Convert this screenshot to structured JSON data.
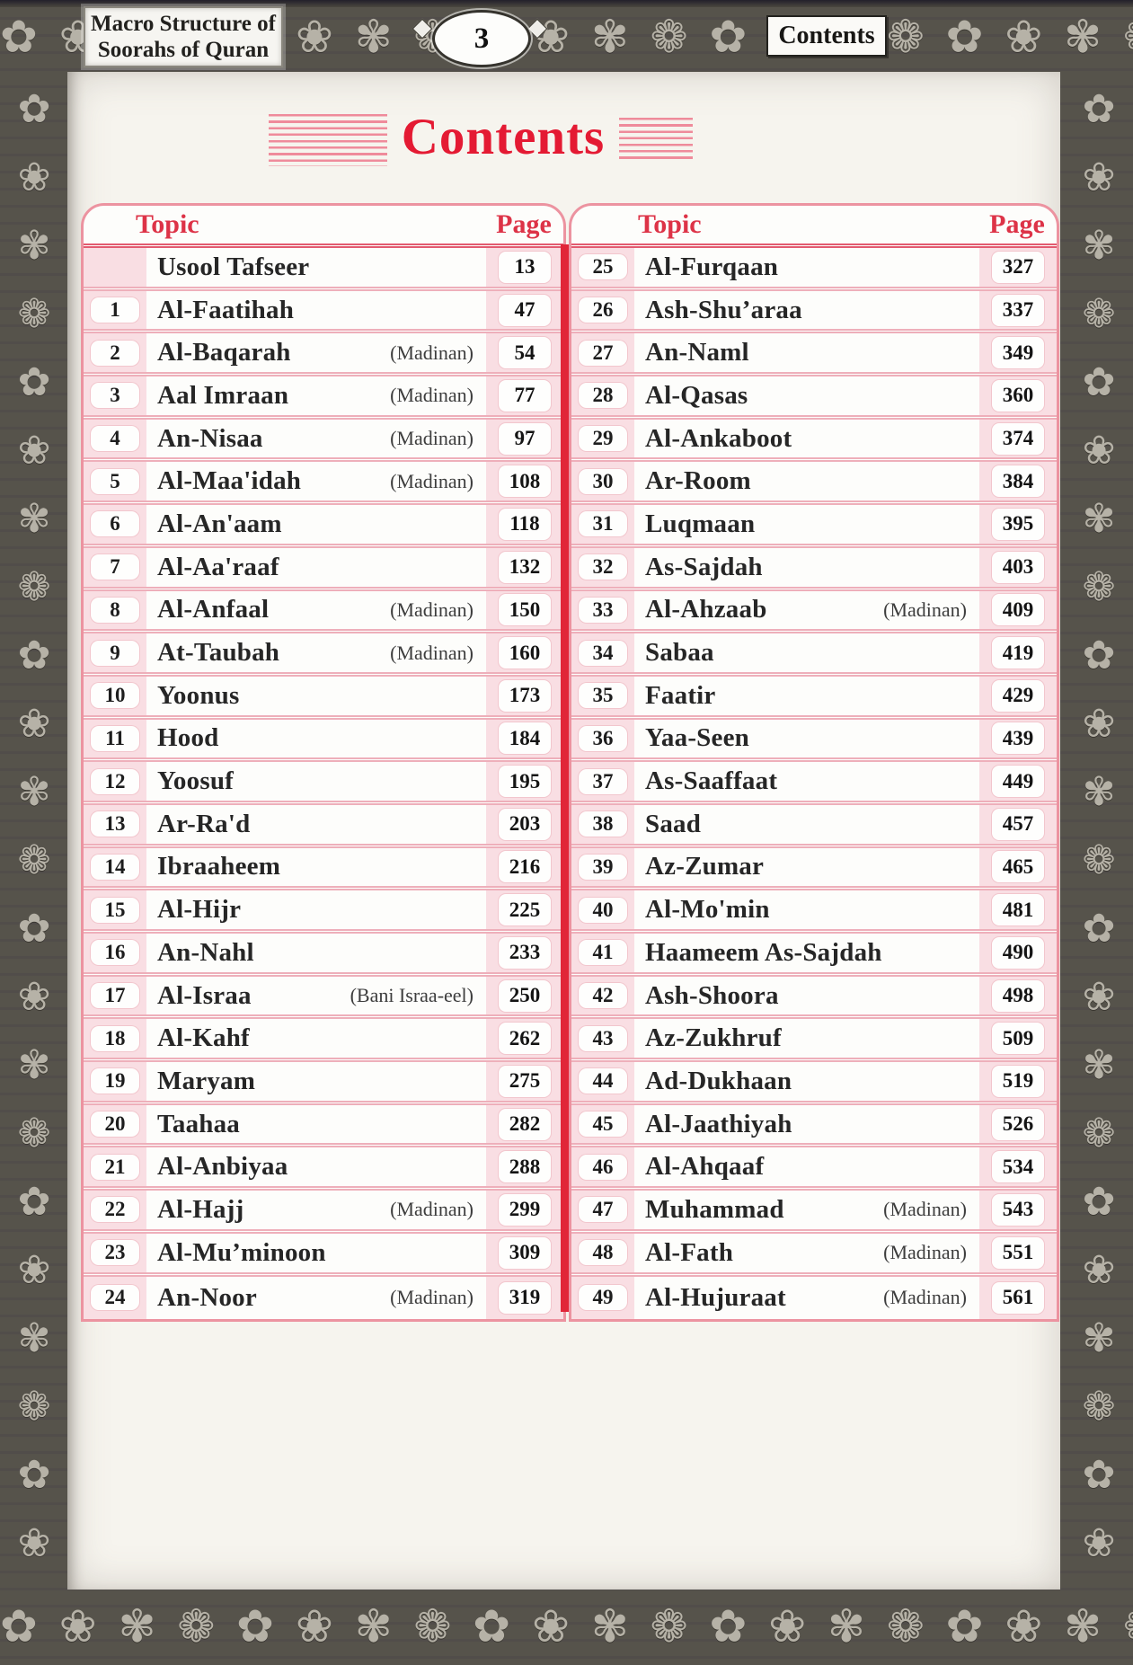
{
  "header": {
    "book_title_line1": "Macro Structure of",
    "book_title_line2": "Soorahs of Quran",
    "page_number": "3",
    "corner_label": "Contents"
  },
  "title": "Contents",
  "tables": {
    "left": {
      "topic_label": "Topic",
      "page_label": "Page",
      "rows": [
        {
          "num": "",
          "name": "Usool Tafseer",
          "note": "",
          "page": "13"
        },
        {
          "num": "1",
          "name": "Al-Faatihah",
          "note": "",
          "page": "47"
        },
        {
          "num": "2",
          "name": "Al-Baqarah",
          "note": "(Madinan)",
          "page": "54"
        },
        {
          "num": "3",
          "name": "Aal Imraan",
          "note": "(Madinan)",
          "page": "77"
        },
        {
          "num": "4",
          "name": "An-Nisaa",
          "note": "(Madinan)",
          "page": "97"
        },
        {
          "num": "5",
          "name": "Al-Maa'idah",
          "note": "(Madinan)",
          "page": "108"
        },
        {
          "num": "6",
          "name": "Al-An'aam",
          "note": "",
          "page": "118"
        },
        {
          "num": "7",
          "name": "Al-Aa'raaf",
          "note": "",
          "page": "132"
        },
        {
          "num": "8",
          "name": "Al-Anfaal",
          "note": "(Madinan)",
          "page": "150"
        },
        {
          "num": "9",
          "name": "At-Taubah",
          "note": "(Madinan)",
          "page": "160"
        },
        {
          "num": "10",
          "name": "Yoonus",
          "note": "",
          "page": "173"
        },
        {
          "num": "11",
          "name": "Hood",
          "note": "",
          "page": "184"
        },
        {
          "num": "12",
          "name": "Yoosuf",
          "note": "",
          "page": "195"
        },
        {
          "num": "13",
          "name": "Ar-Ra'd",
          "note": "",
          "page": "203"
        },
        {
          "num": "14",
          "name": "Ibraaheem",
          "note": "",
          "page": "216"
        },
        {
          "num": "15",
          "name": "Al-Hijr",
          "note": "",
          "page": "225"
        },
        {
          "num": "16",
          "name": "An-Nahl",
          "note": "",
          "page": "233"
        },
        {
          "num": "17",
          "name": "Al-Israa",
          "note": "(Bani Israa-eel)",
          "page": "250"
        },
        {
          "num": "18",
          "name": "Al-Kahf",
          "note": "",
          "page": "262"
        },
        {
          "num": "19",
          "name": "Maryam",
          "note": "",
          "page": "275"
        },
        {
          "num": "20",
          "name": "Taahaa",
          "note": "",
          "page": "282"
        },
        {
          "num": "21",
          "name": "Al-Anbiyaa",
          "note": "",
          "page": "288"
        },
        {
          "num": "22",
          "name": "Al-Hajj",
          "note": "(Madinan)",
          "page": "299"
        },
        {
          "num": "23",
          "name": "Al-Mu’minoon",
          "note": "",
          "page": "309"
        },
        {
          "num": "24",
          "name": "An-Noor",
          "note": "(Madinan)",
          "page": "319"
        }
      ]
    },
    "right": {
      "topic_label": "Topic",
      "page_label": "Page",
      "rows": [
        {
          "num": "25",
          "name": "Al-Furqaan",
          "note": "",
          "page": "327"
        },
        {
          "num": "26",
          "name": "Ash-Shu’araa",
          "note": "",
          "page": "337"
        },
        {
          "num": "27",
          "name": "An-Naml",
          "note": "",
          "page": "349"
        },
        {
          "num": "28",
          "name": "Al-Qasas",
          "note": "",
          "page": "360"
        },
        {
          "num": "29",
          "name": "Al-Ankaboot",
          "note": "",
          "page": "374"
        },
        {
          "num": "30",
          "name": "Ar-Room",
          "note": "",
          "page": "384"
        },
        {
          "num": "31",
          "name": "Luqmaan",
          "note": "",
          "page": "395"
        },
        {
          "num": "32",
          "name": "As-Sajdah",
          "note": "",
          "page": "403"
        },
        {
          "num": "33",
          "name": "Al-Ahzaab",
          "note": "(Madinan)",
          "page": "409"
        },
        {
          "num": "34",
          "name": "Sabaa",
          "note": "",
          "page": "419"
        },
        {
          "num": "35",
          "name": "Faatir",
          "note": "",
          "page": "429"
        },
        {
          "num": "36",
          "name": "Yaa-Seen",
          "note": "",
          "page": "439"
        },
        {
          "num": "37",
          "name": "As-Saaffaat",
          "note": "",
          "page": "449"
        },
        {
          "num": "38",
          "name": "Saad",
          "note": "",
          "page": "457"
        },
        {
          "num": "39",
          "name": "Az-Zumar",
          "note": "",
          "page": "465"
        },
        {
          "num": "40",
          "name": "Al-Mo'min",
          "note": "",
          "page": "481"
        },
        {
          "num": "41",
          "name": "Haameem As-Sajdah",
          "note": "",
          "page": "490"
        },
        {
          "num": "42",
          "name": "Ash-Shoora",
          "note": "",
          "page": "498"
        },
        {
          "num": "43",
          "name": "Az-Zukhruf",
          "note": "",
          "page": "509"
        },
        {
          "num": "44",
          "name": "Ad-Dukhaan",
          "note": "",
          "page": "519"
        },
        {
          "num": "45",
          "name": "Al-Jaathiyah",
          "note": "",
          "page": "526"
        },
        {
          "num": "46",
          "name": "Al-Ahqaaf",
          "note": "",
          "page": "534"
        },
        {
          "num": "47",
          "name": "Muhammad",
          "note": "(Madinan)",
          "page": "543"
        },
        {
          "num": "48",
          "name": "Al-Fath",
          "note": "(Madinan)",
          "page": "551"
        },
        {
          "num": "49",
          "name": "Al-Hujuraat",
          "note": "(Madinan)",
          "page": "561"
        }
      ]
    }
  },
  "decor": {
    "ornament_glyphs": "✿ ❀ ✾ ❁ ",
    "accent_red": "#e41a33",
    "line_pink": "#ec93a0",
    "strip_pink": "#f9dee3",
    "frame_dark": "#56534b",
    "frame_ornament_gray": "#b6b2a7"
  }
}
